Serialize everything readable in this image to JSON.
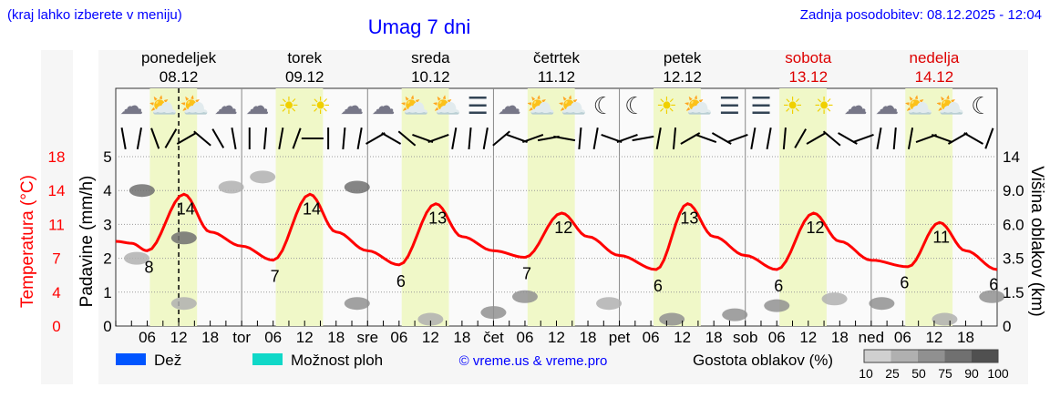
{
  "header": {
    "hint": "(kraj lahko izberete v meniju)",
    "title": "Umag 7 dni",
    "updated": "Zadnja posodobitev: 08.12.2025 - 12:04"
  },
  "colors": {
    "link": "#0000ff",
    "temp": "#ff0000",
    "daylight": "#f0f8c8",
    "rain": "#0055ff",
    "showers": "#10d8c8",
    "weekend": "#dd0000"
  },
  "days": [
    {
      "name": "ponedeljek",
      "date": "08.12",
      "abbr": "",
      "weekend": false,
      "icons": [
        "moon-cloud-icon",
        "sun-cloud-icon",
        "sun-cloud-icon",
        "moon-cloud-icon"
      ]
    },
    {
      "name": "torek",
      "date": "09.12",
      "abbr": "tor",
      "weekend": false,
      "icons": [
        "moon-cloud-icon",
        "sun-icon",
        "sun-icon",
        "moon-cloud-icon"
      ]
    },
    {
      "name": "sreda",
      "date": "10.12",
      "abbr": "sre",
      "weekend": false,
      "icons": [
        "moon-cloud-icon",
        "sun-cloud-icon",
        "sun-cloud-icon",
        "moon-fog-icon"
      ]
    },
    {
      "name": "četrtek",
      "date": "11.12",
      "abbr": "čet",
      "weekend": false,
      "icons": [
        "moon-cloud-icon",
        "sun-cloud-icon",
        "sun-cloud-icon",
        "moon-icon"
      ]
    },
    {
      "name": "petek",
      "date": "12.12",
      "abbr": "pet",
      "weekend": false,
      "icons": [
        "moon-icon",
        "sun-icon",
        "sun-cloud-icon",
        "moon-fog-icon"
      ]
    },
    {
      "name": "sobota",
      "date": "13.12",
      "abbr": "sob",
      "weekend": true,
      "icons": [
        "moon-fog-icon",
        "sun-icon",
        "sun-icon",
        "moon-cloud-icon"
      ]
    },
    {
      "name": "nedelja",
      "date": "14.12",
      "abbr": "ned",
      "weekend": true,
      "icons": [
        "moon-cloud-icon",
        "sun-cloud-icon",
        "sun-cloud-icon",
        "moon-icon"
      ]
    }
  ],
  "chart_data": {
    "type": "line",
    "title": "Umag 7 dni",
    "hour_ticks": [
      "06",
      "12",
      "18"
    ],
    "current_hour": 12,
    "temp_axis": {
      "label": "Temperatura (°C)",
      "ticks": [
        "0",
        "4",
        "7",
        "11",
        "14",
        "18"
      ],
      "range": [
        0,
        18
      ]
    },
    "precip_axis": {
      "label": "Padavine (mm/h)",
      "ticks": [
        "0",
        "1",
        "2",
        "3",
        "4",
        "5"
      ],
      "range": [
        0,
        5
      ]
    },
    "cloud_axis": {
      "label": "Višina oblakov (km)",
      "ticks": [
        "0",
        "1.5",
        "3.5",
        "6.0",
        "9.0",
        "14"
      ]
    },
    "temperature": {
      "hours": [
        0,
        3,
        6,
        13,
        18,
        24,
        30,
        37,
        42,
        48,
        54,
        61,
        66,
        72,
        78,
        85,
        90,
        96,
        103,
        109,
        114,
        120,
        126,
        133,
        138,
        144,
        151,
        157,
        162,
        168
      ],
      "values": [
        9,
        8.8,
        8,
        14,
        10,
        8.5,
        7,
        14,
        10,
        8,
        6.5,
        13,
        9.5,
        8,
        7.3,
        12,
        9.5,
        7.5,
        6,
        13,
        9.5,
        7.5,
        6,
        12,
        9,
        7,
        6.3,
        11,
        8,
        6
      ],
      "labels": [
        {
          "hour": 6,
          "value": "8"
        },
        {
          "hour": 13,
          "value": "14"
        },
        {
          "hour": 30,
          "value": "7"
        },
        {
          "hour": 37,
          "value": "14"
        },
        {
          "hour": 54,
          "value": "6"
        },
        {
          "hour": 61,
          "value": "13"
        },
        {
          "hour": 78,
          "value": "7"
        },
        {
          "hour": 85,
          "value": "12"
        },
        {
          "hour": 103,
          "value": "6"
        },
        {
          "hour": 109,
          "value": "13"
        },
        {
          "hour": 126,
          "value": "6"
        },
        {
          "hour": 133,
          "value": "12"
        },
        {
          "hour": 150,
          "value": "6"
        },
        {
          "hour": 157,
          "value": "11"
        },
        {
          "hour": 167,
          "value": "6"
        }
      ]
    },
    "clouds": [
      {
        "hour": 5,
        "km": 9,
        "density": 75
      },
      {
        "hour": 4,
        "km": 3.5,
        "density": 25
      },
      {
        "hour": 13,
        "km": 5,
        "density": 75
      },
      {
        "hour": 13,
        "km": 1,
        "density": 25
      },
      {
        "hour": 22,
        "km": 9.5,
        "density": 25
      },
      {
        "hour": 28,
        "km": 11,
        "density": 25
      },
      {
        "hour": 46,
        "km": 9.5,
        "density": 75
      },
      {
        "hour": 46,
        "km": 1,
        "density": 50
      },
      {
        "hour": 60,
        "km": 0.3,
        "density": 25
      },
      {
        "hour": 72,
        "km": 0.6,
        "density": 50
      },
      {
        "hour": 78,
        "km": 1.3,
        "density": 50
      },
      {
        "hour": 94,
        "km": 1,
        "density": 25
      },
      {
        "hour": 106,
        "km": 0.3,
        "density": 50
      },
      {
        "hour": 118,
        "km": 0.5,
        "density": 50
      },
      {
        "hour": 126,
        "km": 0.9,
        "density": 50
      },
      {
        "hour": 137,
        "km": 1.2,
        "density": 25
      },
      {
        "hour": 146,
        "km": 1,
        "density": 50
      },
      {
        "hour": 158,
        "km": 0.3,
        "density": 25
      },
      {
        "hour": 167,
        "km": 1.3,
        "density": 50
      }
    ],
    "wind_dir_deg": [
      80,
      100,
      70,
      120,
      150,
      40,
      60,
      80,
      90,
      95,
      100,
      110,
      0,
      90,
      95,
      100,
      150,
      30,
      40,
      20,
      160,
      100,
      95,
      100,
      140,
      20,
      160,
      170,
      10,
      95,
      100,
      20,
      160,
      170,
      100,
      95,
      150,
      20,
      30,
      160,
      100,
      100,
      95,
      120,
      150,
      40,
      30,
      160,
      100,
      95,
      100,
      160,
      20,
      150,
      30,
      110
    ],
    "legend": [
      {
        "label": "Dež",
        "color": "#0055ff"
      },
      {
        "label": "Možnost ploh",
        "color": "#10d8c8"
      }
    ],
    "credit": "© vreme.us & vreme.pro",
    "density_legend": {
      "label": "Gostota oblakov (%)",
      "levels": [
        "10",
        "25",
        "50",
        "75",
        "90",
        "100"
      ],
      "colors": [
        "#d0d0d0",
        "#b0b0b0",
        "#909090",
        "#707070",
        "#505050"
      ]
    }
  }
}
